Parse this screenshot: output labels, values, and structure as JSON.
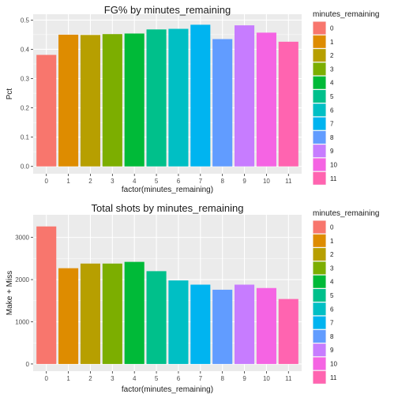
{
  "chart_data": [
    {
      "type": "bar",
      "title": "FG% by minutes_remaining",
      "xlabel": "factor(minutes_remaining)",
      "ylabel": "Pct",
      "categories": [
        "0",
        "1",
        "2",
        "3",
        "4",
        "5",
        "6",
        "7",
        "8",
        "9",
        "10",
        "11"
      ],
      "values": [
        0.381,
        0.45,
        0.449,
        0.452,
        0.454,
        0.468,
        0.47,
        0.484,
        0.435,
        0.482,
        0.457,
        0.426
      ],
      "ylim": [
        0,
        0.5
      ],
      "yticks": [
        0.0,
        0.1,
        0.2,
        0.3,
        0.4,
        0.5
      ],
      "ytick_labels": [
        "0.0",
        "0.1",
        "0.2",
        "0.3",
        "0.4",
        "0.5"
      ],
      "grid": true,
      "legend": {
        "title": "minutes_remaining",
        "placement": "right",
        "labels": [
          "0",
          "1",
          "2",
          "3",
          "4",
          "5",
          "6",
          "7",
          "8",
          "9",
          "10",
          "11"
        ]
      }
    },
    {
      "type": "bar",
      "title": "Total shots by minutes_remaining",
      "xlabel": "factor(minutes_remaining)",
      "ylabel": "Make + Miss",
      "categories": [
        "0",
        "1",
        "2",
        "3",
        "4",
        "5",
        "6",
        "7",
        "8",
        "9",
        "10",
        "11"
      ],
      "values": [
        3260,
        2270,
        2380,
        2380,
        2420,
        2200,
        1980,
        1880,
        1760,
        1880,
        1800,
        1540
      ],
      "ylim": [
        0,
        3400
      ],
      "yticks": [
        0,
        1000,
        2000,
        3000
      ],
      "ytick_labels": [
        "0",
        "1000",
        "2000",
        "3000"
      ],
      "grid": true,
      "legend": {
        "title": "minutes_remaining",
        "placement": "right",
        "labels": [
          "0",
          "1",
          "2",
          "3",
          "4",
          "5",
          "6",
          "7",
          "8",
          "9",
          "10",
          "11"
        ]
      }
    }
  ],
  "colors": [
    "#F8766D",
    "#DE8C00",
    "#B79F00",
    "#7CAE00",
    "#00BA38",
    "#00C08B",
    "#00BFC4",
    "#00B4F0",
    "#619CFF",
    "#C77CFF",
    "#F564E3",
    "#FF64B0"
  ],
  "panel_background": "#EBEBEB",
  "grid_color": "#FFFFFF"
}
